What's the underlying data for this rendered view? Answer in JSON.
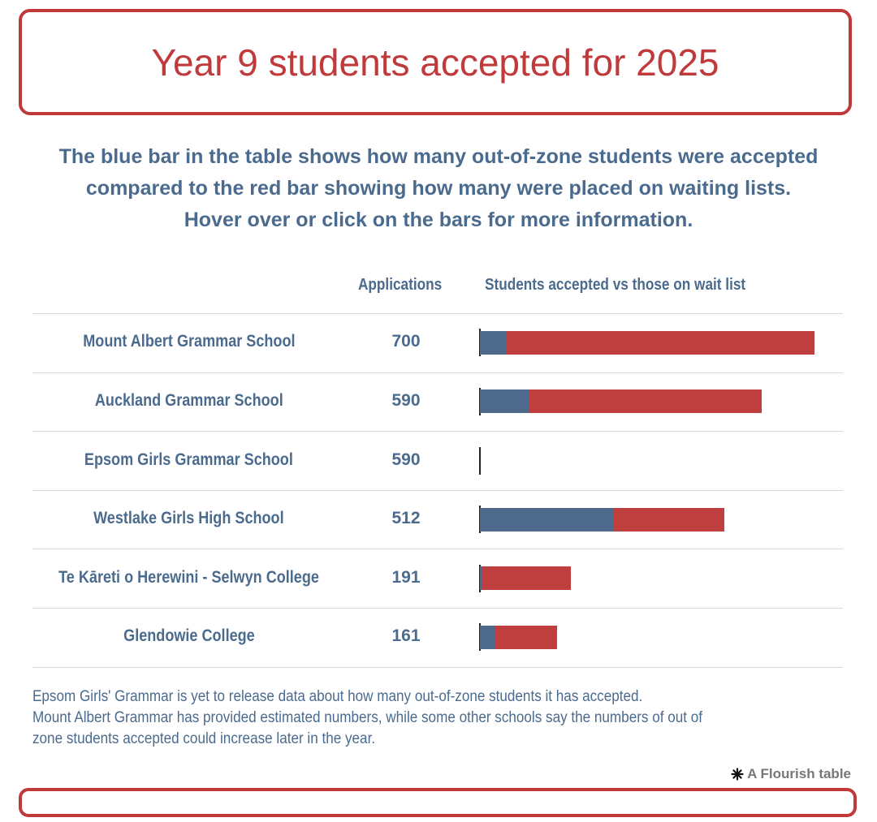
{
  "title": "Year 9 students accepted for 2025",
  "subtitle": [
    "The blue bar in the table shows how many out-of-zone students were accepted",
    "compared to the red bar showing how many were placed on waiting lists.",
    "Hover over or click on the bars for more information."
  ],
  "columns": {
    "applications": "Applications",
    "bars": "Students accepted vs those on wait list"
  },
  "notes": [
    "Epsom Girls' Grammar is yet to release data about how many out-of-zone students it has accepted.",
    "Mount Albert Grammar has provided estimated numbers, while some other schools say the numbers of out of",
    "zone students accepted could increase later in the year."
  ],
  "credit": "A Flourish table",
  "colors": {
    "accepted": "#4d6a8c",
    "waitlist": "#bf3e3e",
    "title": "#c0393b"
  },
  "chart_data": {
    "type": "bar",
    "orientation": "horizontal",
    "stacked": true,
    "categories": [
      "Mount Albert Grammar School",
      "Auckland Grammar School",
      "Epsom Girls Grammar School",
      "Westlake Girls High School",
      "Te Kāreti o Herewini - Selwyn College",
      "Glendowie College"
    ],
    "applications": [
      700,
      590,
      590,
      512,
      191,
      161
    ],
    "series": [
      {
        "name": "accepted",
        "values": [
          55,
          102,
          0,
          280,
          5,
          33
        ]
      },
      {
        "name": "wait list",
        "values": [
          645,
          488,
          0,
          232,
          186,
          128
        ]
      }
    ]
  }
}
